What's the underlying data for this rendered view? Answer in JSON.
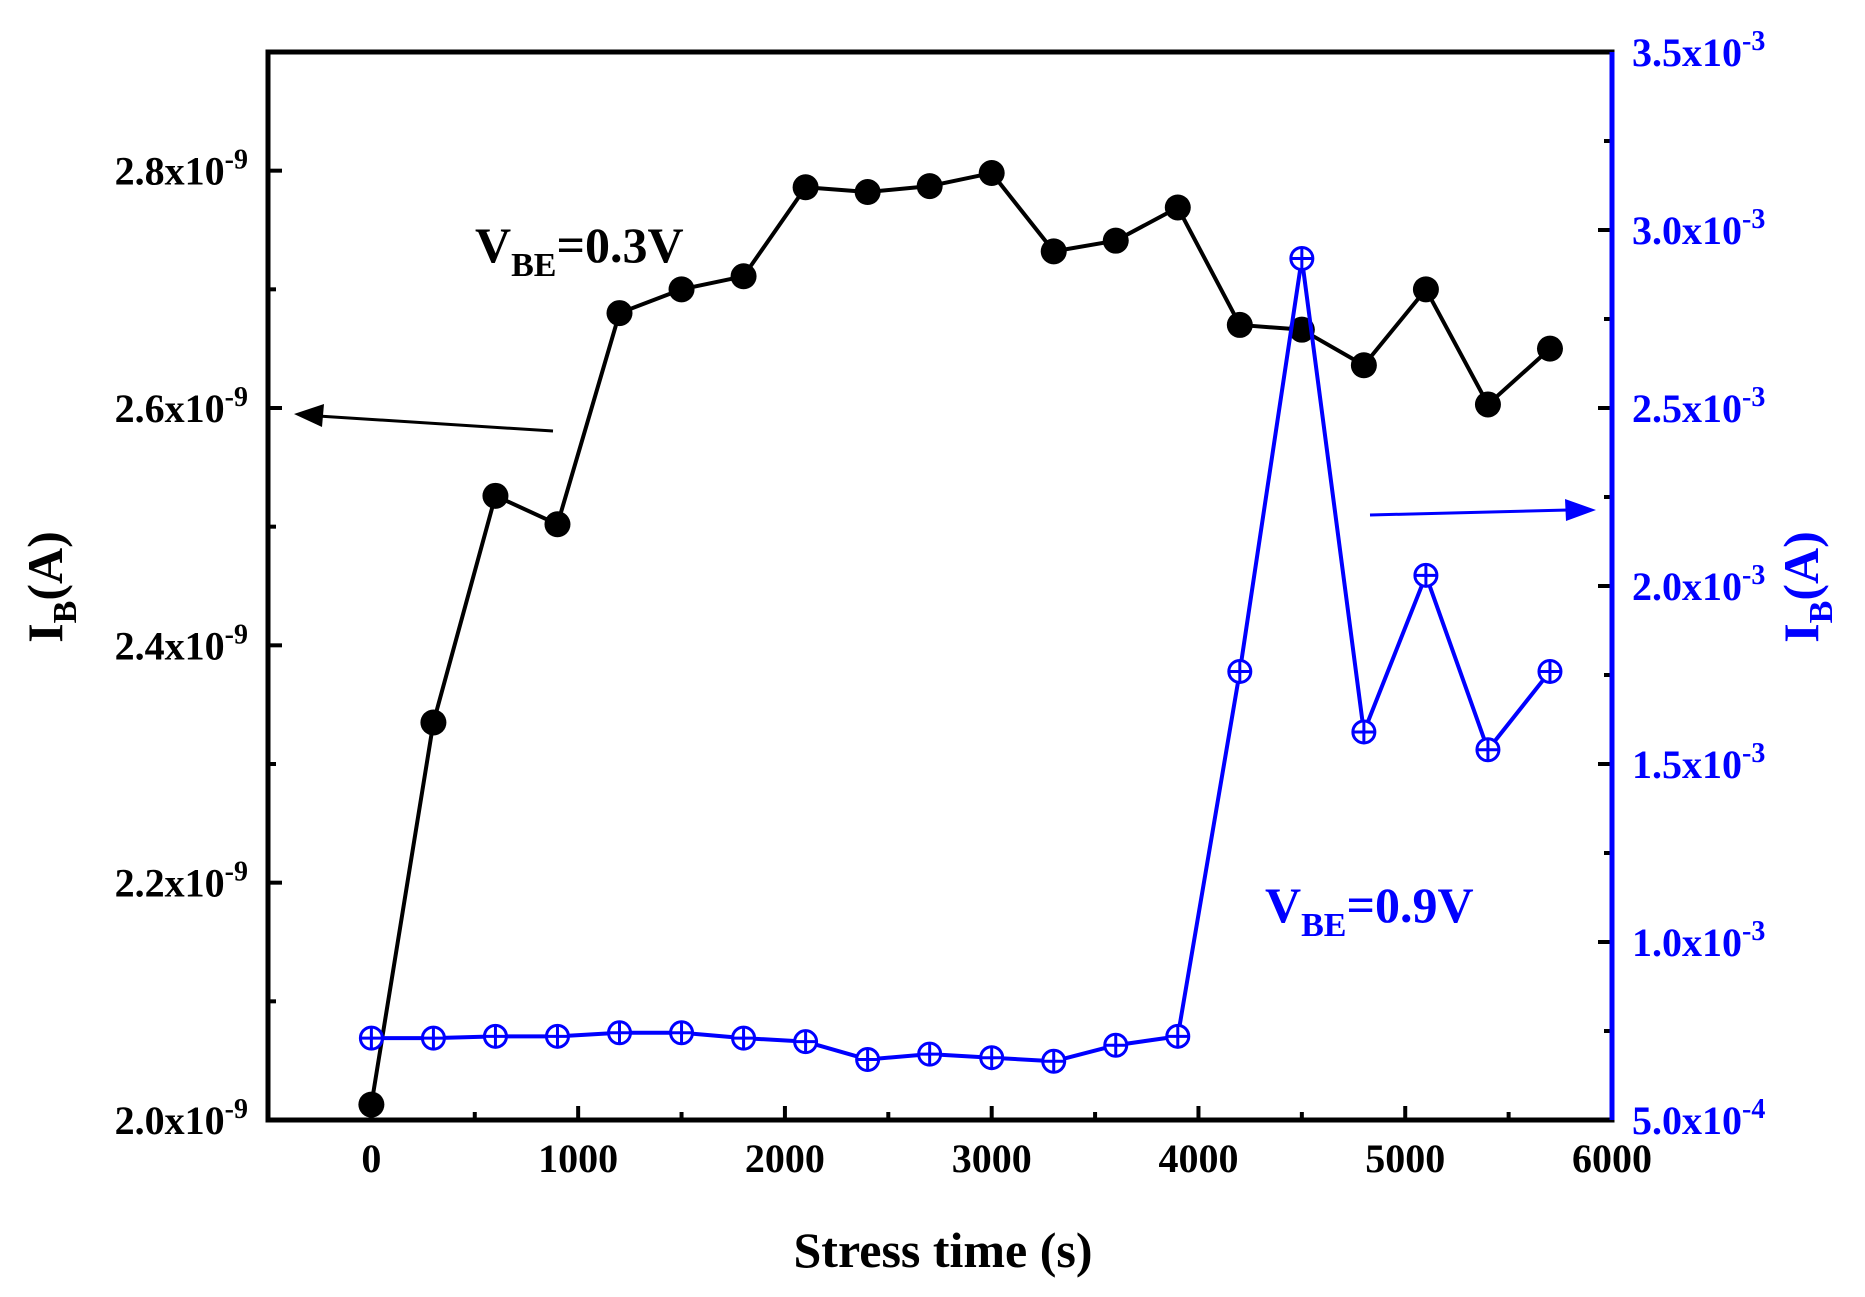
{
  "chart_data": {
    "type": "line",
    "title": "",
    "xlabel": "Stress time (s)",
    "xlim": [
      -500,
      6000
    ],
    "xticks": [
      "0",
      "1000",
      "2000",
      "3000",
      "4000",
      "5000",
      "6000"
    ],
    "y_left": {
      "label": "I",
      "label_sub": "B",
      "label_suffix": "(A)",
      "ylim": [
        2e-09,
        2.9e-09
      ],
      "ticks": [
        {
          "value": 2e-09,
          "mantissa": "2.0x10",
          "exp": "-9"
        },
        {
          "value": 2.2e-09,
          "mantissa": "2.2x10",
          "exp": "-9"
        },
        {
          "value": 2.4e-09,
          "mantissa": "2.4x10",
          "exp": "-9"
        },
        {
          "value": 2.6e-09,
          "mantissa": "2.6x10",
          "exp": "-9"
        },
        {
          "value": 2.8e-09,
          "mantissa": "2.8x10",
          "exp": "-9"
        }
      ],
      "color": "#000000"
    },
    "y_right": {
      "label": "I",
      "label_sub": "B",
      "label_suffix": "(A)",
      "ylim": [
        0.0005,
        0.0035
      ],
      "ticks": [
        {
          "value": 0.0005,
          "mantissa": "5.0x10",
          "exp": "-4"
        },
        {
          "value": 0.001,
          "mantissa": "1.0x10",
          "exp": "-3"
        },
        {
          "value": 0.0015,
          "mantissa": "1.5x10",
          "exp": "-3"
        },
        {
          "value": 0.002,
          "mantissa": "2.0x10",
          "exp": "-3"
        },
        {
          "value": 0.0025,
          "mantissa": "2.5x10",
          "exp": "-3"
        },
        {
          "value": 0.003,
          "mantissa": "3.0x10",
          "exp": "-3"
        },
        {
          "value": 0.0035,
          "mantissa": "3.5x10",
          "exp": "-3"
        }
      ],
      "color": "#0000ff"
    },
    "series": [
      {
        "name": "VBE=0.3V",
        "axis": "left",
        "color": "#000000",
        "marker": "filled-circle",
        "x": [
          0,
          300,
          600,
          900,
          1200,
          1500,
          1800,
          2100,
          2400,
          2700,
          3000,
          3300,
          3600,
          3900,
          4200,
          4500,
          4800,
          5100,
          5400,
          5700
        ],
        "y": [
          2.013e-09,
          2.335e-09,
          2.526e-09,
          2.502e-09,
          2.68e-09,
          2.7e-09,
          2.711e-09,
          2.786e-09,
          2.782e-09,
          2.787e-09,
          2.798e-09,
          2.732e-09,
          2.741e-09,
          2.769e-09,
          2.67e-09,
          2.666e-09,
          2.636e-09,
          2.7e-09,
          2.603e-09,
          2.65e-09
        ]
      },
      {
        "name": "VBE=0.9V",
        "axis": "right",
        "color": "#0000ff",
        "marker": "circle-plus",
        "x": [
          0,
          300,
          600,
          900,
          1200,
          1500,
          1800,
          2100,
          2400,
          2700,
          3000,
          3300,
          3600,
          3900,
          4200,
          4500,
          4800,
          5100,
          5400,
          5700
        ],
        "y": [
          0.00073,
          0.00073,
          0.000735,
          0.000735,
          0.000745,
          0.000745,
          0.00073,
          0.00072,
          0.00067,
          0.000685,
          0.000675,
          0.000665,
          0.00071,
          0.000735,
          0.00176,
          0.00292,
          0.00159,
          0.00203,
          0.00154,
          0.00176
        ]
      }
    ],
    "annotations": [
      {
        "main": "V",
        "sub": "BE",
        "rest": "=0.3V",
        "color": "#000000"
      },
      {
        "main": "V",
        "sub": "BE",
        "rest": "=0.9V",
        "color": "#0000ff"
      }
    ],
    "legend": "none",
    "grid": false
  }
}
